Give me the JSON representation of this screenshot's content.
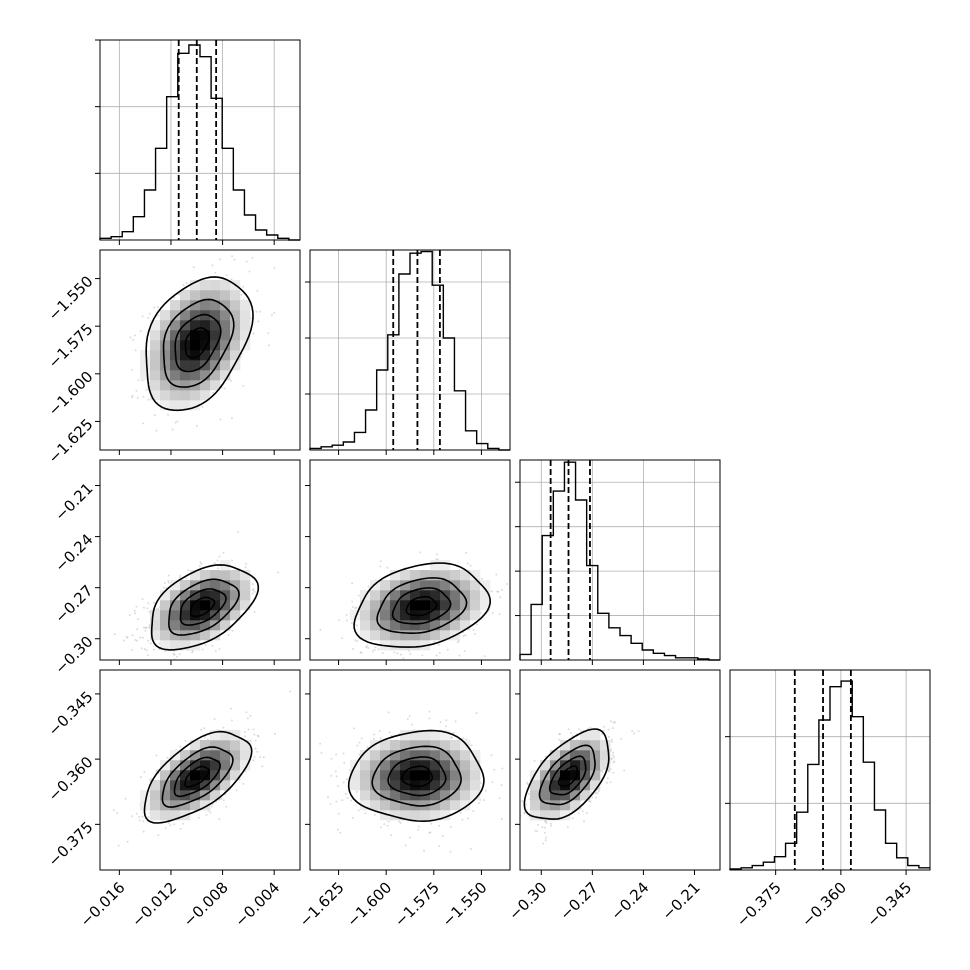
{
  "chart_data": {
    "type": "corner",
    "title": "",
    "grid": true,
    "parameters": [
      {
        "ticks": [
          -0.016,
          -0.012,
          -0.008,
          -0.004
        ],
        "tick_labels": [
          "−0.016",
          "−0.012",
          "−0.008",
          "−0.004"
        ],
        "range": [
          -0.0175,
          -0.002
        ],
        "quantiles": [
          -0.0114,
          -0.01,
          -0.0085
        ],
        "hist": [
          1,
          2,
          5,
          14,
          30,
          55,
          86,
          112,
          117,
          110,
          85,
          55,
          30,
          15,
          6,
          3,
          1,
          0
        ],
        "hist_yticks": [
          40,
          80,
          120
        ],
        "hist_ymax": 120
      },
      {
        "ticks": [
          -1.625,
          -1.6,
          -1.575,
          -1.55
        ],
        "tick_labels": [
          "−1.625",
          "−1.600",
          "−1.575",
          "−1.550"
        ],
        "range": [
          -1.64,
          -1.535
        ],
        "quantiles": [
          -1.5963,
          -1.5836,
          -1.5718
        ],
        "hist": [
          1,
          2,
          3,
          5,
          11,
          25,
          50,
          72,
          110,
          123,
          124,
          103,
          70,
          37,
          12,
          4,
          1,
          0
        ],
        "hist_yticks": [
          35,
          70,
          105
        ],
        "hist_ymax": 125
      },
      {
        "ticks": [
          -0.3,
          -0.27,
          -0.24,
          -0.21
        ],
        "tick_labels": [
          "−0.30",
          "−0.27",
          "−0.24",
          "−0.21"
        ],
        "range": [
          -0.3125,
          -0.195
        ],
        "quantiles": [
          -0.2945,
          -0.284,
          -0.2714
        ],
        "hist": [
          5,
          50,
          112,
          152,
          178,
          144,
          85,
          42,
          29,
          22,
          15,
          9,
          6,
          4,
          2,
          2,
          1,
          0
        ],
        "hist_yticks": [
          40,
          80,
          120,
          160
        ],
        "hist_ymax": 180
      },
      {
        "ticks": [
          -0.375,
          -0.36,
          -0.345
        ],
        "tick_labels": [
          "−0.375",
          "−0.360",
          "−0.345"
        ],
        "range": [
          -0.3855,
          -0.3395
        ],
        "quantiles": [
          -0.3706,
          -0.3641,
          -0.3577
        ],
        "hist": [
          1,
          2,
          4,
          7,
          12,
          24,
          52,
          95,
          135,
          165,
          170,
          138,
          97,
          54,
          24,
          11,
          4,
          2
        ],
        "hist_yticks": [
          60,
          120
        ],
        "hist_ymax": 180
      }
    ],
    "pairs": [
      {
        "row": 1,
        "col": 0,
        "mean": [
          -0.01,
          -1.5836
        ],
        "sd": [
          0.002,
          0.017
        ],
        "rho": 0.35,
        "peak_offset": [
          0.0,
          0.0
        ]
      },
      {
        "row": 2,
        "col": 0,
        "mean": [
          -0.0101,
          -0.283
        ],
        "sd": [
          0.002,
          0.012
        ],
        "rho": 0.45,
        "peak_offset": [
          0.0005,
          0.0018
        ]
      },
      {
        "row": 2,
        "col": 1,
        "mean": [
          -1.5836,
          -0.283
        ],
        "sd": [
          0.017,
          0.012
        ],
        "rho": 0.25,
        "peak_offset": [
          0.002,
          0.002
        ]
      },
      {
        "row": 3,
        "col": 0,
        "mean": [
          -0.01,
          -0.364
        ],
        "sd": [
          0.002,
          0.005
        ],
        "rho": 0.6,
        "peak_offset": [
          0.0,
          0.0
        ]
      },
      {
        "row": 3,
        "col": 1,
        "mean": [
          -1.5836,
          -0.364
        ],
        "sd": [
          0.017,
          0.005
        ],
        "rho": 0.05,
        "peak_offset": [
          0.0,
          0.0
        ]
      },
      {
        "row": 3,
        "col": 2,
        "mean": [
          -0.282,
          -0.364
        ],
        "sd": [
          0.012,
          0.005
        ],
        "rho": 0.55,
        "peak_offset": [
          -0.002,
          0.0
        ]
      }
    ],
    "contour_levels": [
      0.12,
      0.4,
      0.68,
      0.9
    ],
    "scatter_points_per_panel": 700
  }
}
